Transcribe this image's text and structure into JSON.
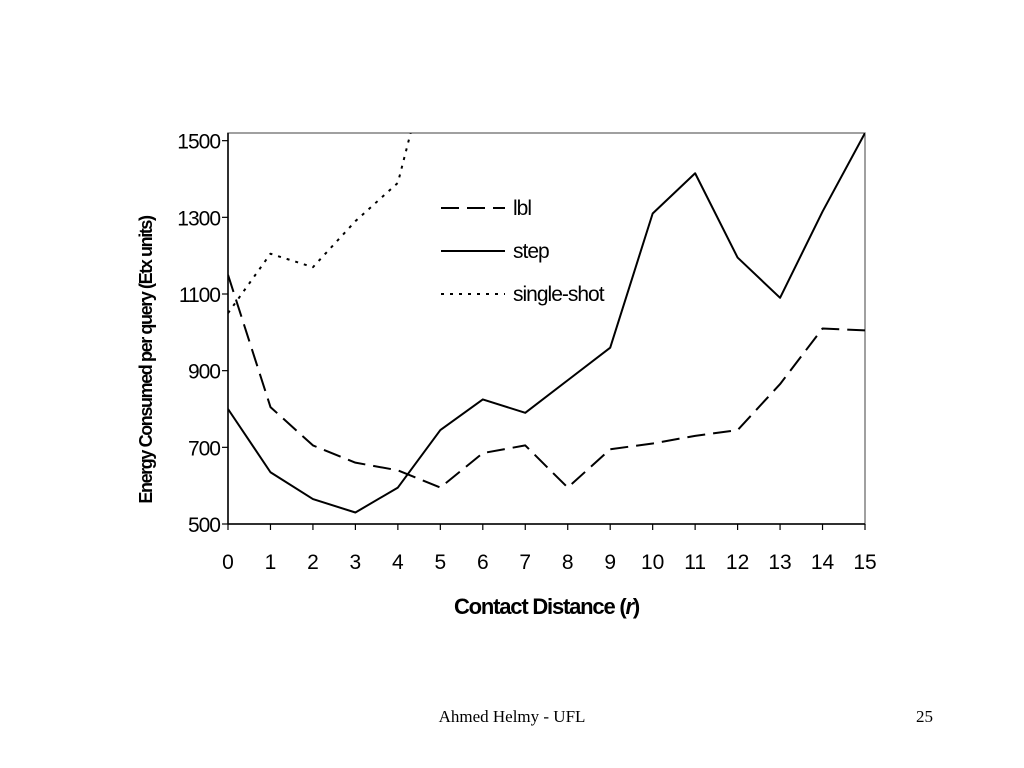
{
  "footer": {
    "author": "Ahmed Helmy - UFL",
    "page_number": "25"
  },
  "chart_data": {
    "type": "line",
    "title": "",
    "xlabel": "Contact Distance (",
    "xlabel_var": "r",
    "xlabel_close": ")",
    "ylabel": "Energy Consumed per query (Etx units)",
    "x": [
      0,
      1,
      2,
      3,
      4,
      5,
      6,
      7,
      8,
      9,
      10,
      11,
      12,
      13,
      14,
      15
    ],
    "xlim": [
      0,
      15
    ],
    "ylim": [
      500,
      1520
    ],
    "yticks": [
      500,
      700,
      900,
      1100,
      1300,
      1500
    ],
    "grid": false,
    "legend_position": "top-center",
    "series": [
      {
        "name": "lbl",
        "style": "dashed",
        "color": "#000000",
        "values": [
          1150,
          805,
          705,
          660,
          640,
          595,
          685,
          705,
          595,
          695,
          710,
          730,
          745,
          865,
          1010,
          1005
        ]
      },
      {
        "name": "step",
        "style": "solid",
        "color": "#000000",
        "values": [
          800,
          635,
          565,
          530,
          595,
          745,
          825,
          790,
          875,
          960,
          1310,
          1415,
          1195,
          1090,
          1315,
          1520
        ]
      },
      {
        "name": "single-shot",
        "style": "dotted",
        "color": "#000000",
        "x": [
          0,
          1,
          2,
          3,
          4,
          4.3
        ],
        "values": [
          1050,
          1205,
          1170,
          1290,
          1390,
          1520
        ]
      }
    ]
  }
}
